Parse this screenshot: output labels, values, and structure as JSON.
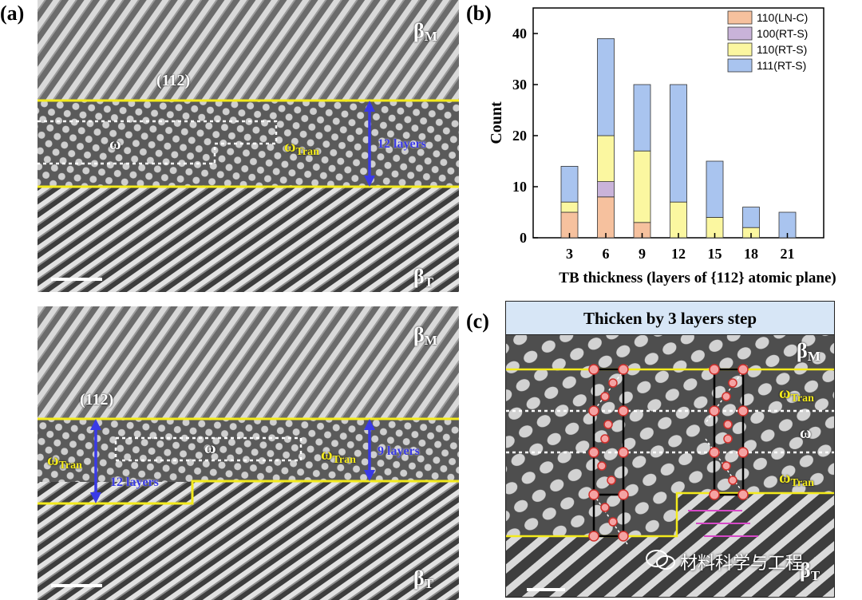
{
  "panel_a": {
    "label": "(a)",
    "top": {
      "beta_m": "β",
      "beta_m_sub": "M",
      "beta_t": "β",
      "beta_t_sub": "T",
      "plane": "(112)",
      "omega": "ω",
      "omega_tran": "ω",
      "omega_tran_sub": "Tran",
      "layers": "12 layers"
    },
    "bottom": {
      "beta_m": "β",
      "beta_m_sub": "M",
      "beta_t": "β",
      "beta_t_sub": "T",
      "plane": "(112)",
      "omega": "ω",
      "omega_tran_left": "ω",
      "omega_tran_left_sub": "Tran",
      "omega_tran_right": "ω",
      "omega_tran_right_sub": "Tran",
      "layers_left": "12 layers",
      "layers_right": "9 layers"
    }
  },
  "panel_b": {
    "label": "(b)"
  },
  "panel_c": {
    "label": "(c)",
    "banner": "Thicken by 3 layers step",
    "beta_m": "β",
    "beta_m_sub": "M",
    "beta_t": "β",
    "beta_t_sub": "T",
    "omega": "ω",
    "omega_tran_top": "ω",
    "omega_tran_top_sub": "Tran",
    "omega_tran_bottom": "ω",
    "omega_tran_bottom_sub": "Tran"
  },
  "watermark": "材料科学与工程",
  "colors": {
    "yellow": "#f3ea1c",
    "blue": "#3a3ae6",
    "atom": "#f4a3a3",
    "atom_edge": "#d0302c"
  },
  "chart_data": {
    "type": "bar",
    "stacked": true,
    "xlabel": "TB thickness (layers of {112} atomic plane)",
    "ylabel": "Count",
    "categories": [
      "3",
      "6",
      "9",
      "12",
      "15",
      "18",
      "21"
    ],
    "ylim": [
      0,
      45
    ],
    "yticks": [
      0,
      10,
      20,
      30,
      40
    ],
    "legend_position": "top-right",
    "series": [
      {
        "name": "110(LN-C)",
        "color": "#f6c19e",
        "values": [
          5,
          8,
          3,
          0,
          0,
          0,
          0
        ]
      },
      {
        "name": "100(RT-S)",
        "color": "#c9b3d9",
        "values": [
          0,
          3,
          0,
          0,
          0,
          0,
          0
        ]
      },
      {
        "name": "110(RT-S)",
        "color": "#fbf7a0",
        "values": [
          2,
          9,
          14,
          7,
          4,
          2,
          0
        ]
      },
      {
        "name": "111(RT-S)",
        "color": "#a9c4ef",
        "values": [
          7,
          19,
          13,
          23,
          11,
          4,
          5
        ]
      }
    ]
  }
}
